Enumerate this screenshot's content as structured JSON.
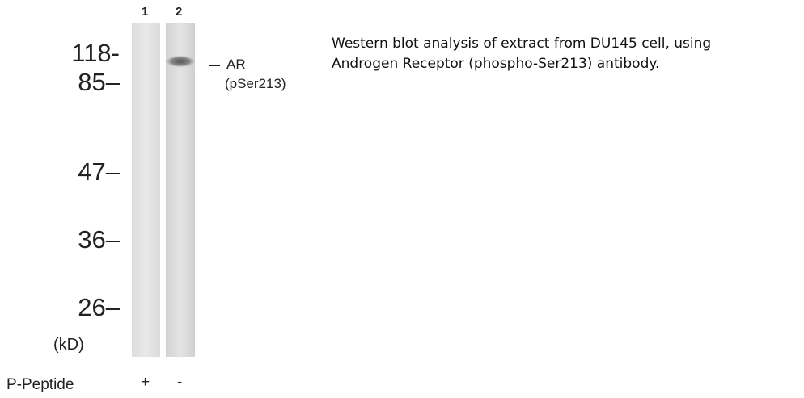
{
  "lanes": [
    "1",
    "2"
  ],
  "markers": [
    "118-",
    "85–",
    "47–",
    "36–",
    "26–"
  ],
  "unit": "(kD)",
  "band_label": [
    "AR",
    "(pSer213)"
  ],
  "peptide": {
    "label": "P-Peptide",
    "values": [
      "+",
      "-"
    ]
  },
  "caption": [
    "Western blot analysis of extract from DU145 cell, using",
    "Androgen Receptor (phospho-Ser213) antibody."
  ]
}
